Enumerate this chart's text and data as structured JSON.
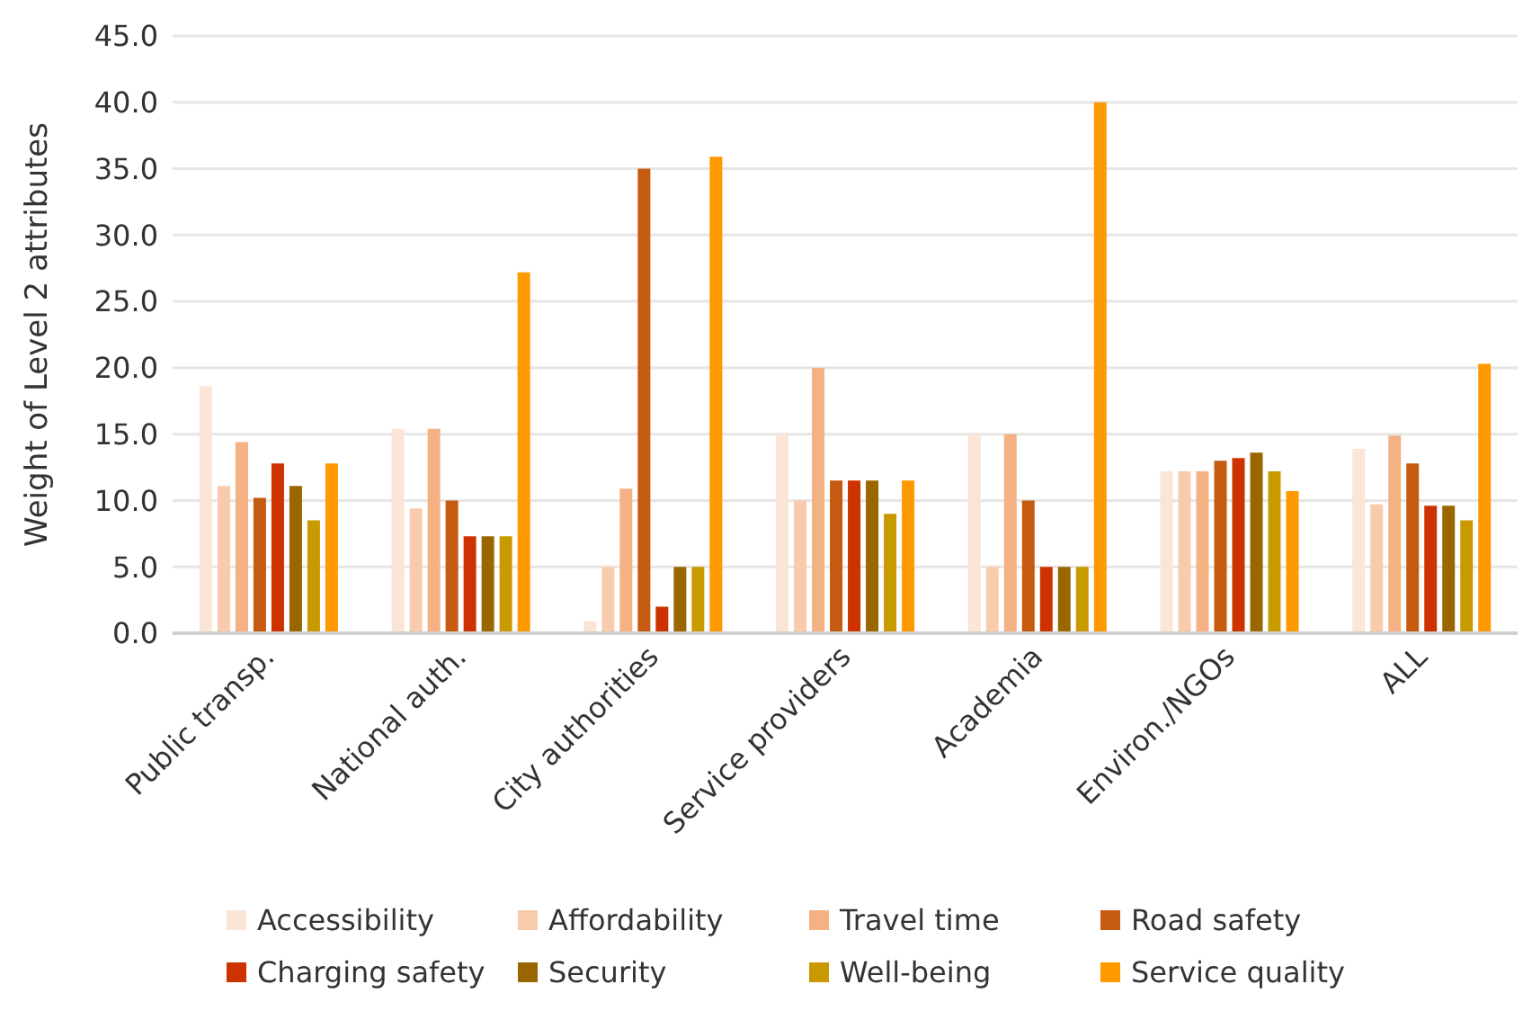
{
  "chart_data": {
    "type": "bar",
    "ylabel": "Weight of Level 2 attributes",
    "categories": [
      "Public transp.",
      "National auth.",
      "City authorities",
      "Service providers",
      "Academia",
      "Environ./NGOs",
      "ALL"
    ],
    "series": [
      {
        "name": "Accessibility",
        "color": "#fbe5d6",
        "values": [
          18.6,
          15.4,
          0.9,
          15.0,
          15.0,
          12.2,
          13.9
        ]
      },
      {
        "name": "Affordability",
        "color": "#f8cbad",
        "values": [
          11.1,
          9.4,
          5.0,
          10.0,
          5.0,
          12.2,
          9.7
        ]
      },
      {
        "name": "Travel time",
        "color": "#f4b183",
        "values": [
          14.4,
          15.4,
          10.9,
          20.0,
          15.0,
          12.2,
          14.9
        ]
      },
      {
        "name": "Road safety",
        "color": "#c55a11",
        "values": [
          10.2,
          10.0,
          35.0,
          11.5,
          10.0,
          13.0,
          12.8
        ]
      },
      {
        "name": "Charging safety",
        "color": "#cc3300",
        "values": [
          12.8,
          7.3,
          2.0,
          11.5,
          5.0,
          13.2,
          9.6
        ]
      },
      {
        "name": "Security",
        "color": "#996600",
        "values": [
          11.1,
          7.3,
          5.0,
          11.5,
          5.0,
          13.6,
          9.6
        ]
      },
      {
        "name": "Well-being",
        "color": "#c99a00",
        "values": [
          8.5,
          7.3,
          5.0,
          9.0,
          5.0,
          12.2,
          8.5
        ]
      },
      {
        "name": "Service quality",
        "color": "#ff9900",
        "values": [
          12.8,
          27.2,
          35.9,
          11.5,
          40.0,
          10.7,
          20.3
        ]
      }
    ],
    "ylim": [
      0,
      45
    ],
    "yticks": [
      {
        "value": 0,
        "label": "0.0"
      },
      {
        "value": 5,
        "label": "5.0"
      },
      {
        "value": 10,
        "label": "10.0"
      },
      {
        "value": 15,
        "label": "15.0"
      },
      {
        "value": 20,
        "label": "20.0"
      },
      {
        "value": 25,
        "label": "25.0"
      },
      {
        "value": 30,
        "label": "30.0"
      },
      {
        "value": 35,
        "label": "35.0"
      },
      {
        "value": 40,
        "label": "40.0"
      },
      {
        "value": 45,
        "label": "45.0"
      }
    ],
    "grid": "y",
    "legend": "bottom"
  }
}
